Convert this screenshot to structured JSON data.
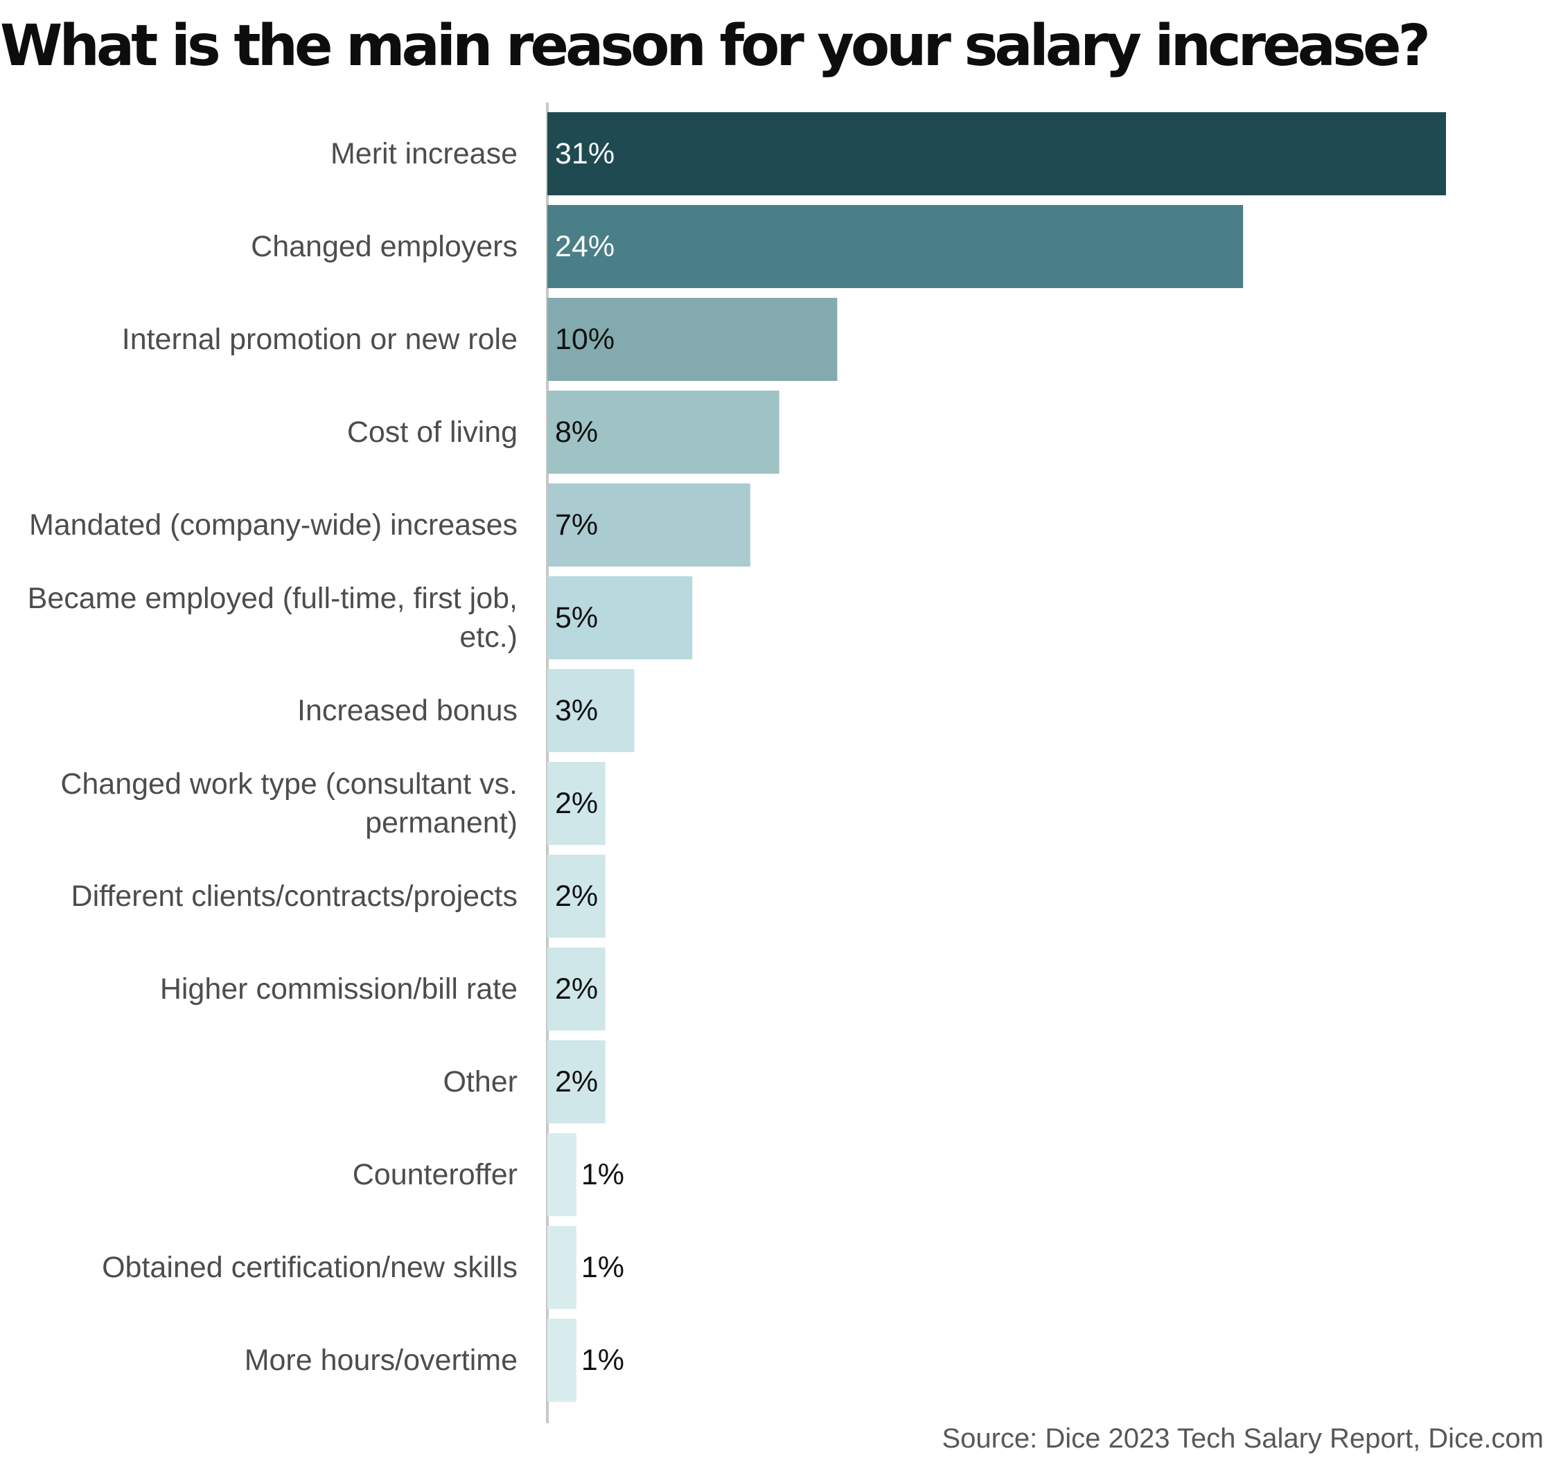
{
  "chart_data": {
    "type": "bar",
    "orientation": "horizontal",
    "title": "What is the main reason for your salary increase?",
    "categories": [
      "Merit increase",
      "Changed employers",
      "Internal promotion or new role",
      "Cost of living",
      "Mandated (company-wide) increases",
      "Became employed (full-time, first job, etc.)",
      "Increased bonus",
      "Changed work type (consultant vs. permanent)",
      "Different clients/contracts/projects",
      "Higher commission/bill rate",
      "Other",
      "Counteroffer",
      "Obtained certification/new skills",
      "More hours/overtime"
    ],
    "values": [
      31,
      24,
      10,
      8,
      7,
      5,
      3,
      2,
      2,
      2,
      2,
      1,
      1,
      1
    ],
    "value_labels": [
      "31%",
      "24%",
      "10%",
      "8%",
      "7%",
      "5%",
      "3%",
      "2%",
      "2%",
      "2%",
      "2%",
      "1%",
      "1%",
      "1%"
    ],
    "unit": "%",
    "xlim": [
      0,
      31
    ],
    "grid": false,
    "legend": "none",
    "colors": [
      "#1f4a51",
      "#4a7f87",
      "#83abaf",
      "#9fc2c5",
      "#aacbcf",
      "#b8d9dd",
      "#c8e2e5",
      "#d0e7ea",
      "#d0e7ea",
      "#d0e7ea",
      "#d0e7ea",
      "#d8eced",
      "#d8eced",
      "#d8eced"
    ],
    "label_colors": [
      "#ffffff",
      "#ffffff",
      "#111111",
      "#111111",
      "#111111",
      "#111111",
      "#111111",
      "#111111",
      "#111111",
      "#111111",
      "#111111",
      "#111111",
      "#111111",
      "#111111"
    ],
    "axis_color": "#c8c8c8"
  },
  "source": "Source: Dice 2023 Tech Salary Report, Dice.com"
}
